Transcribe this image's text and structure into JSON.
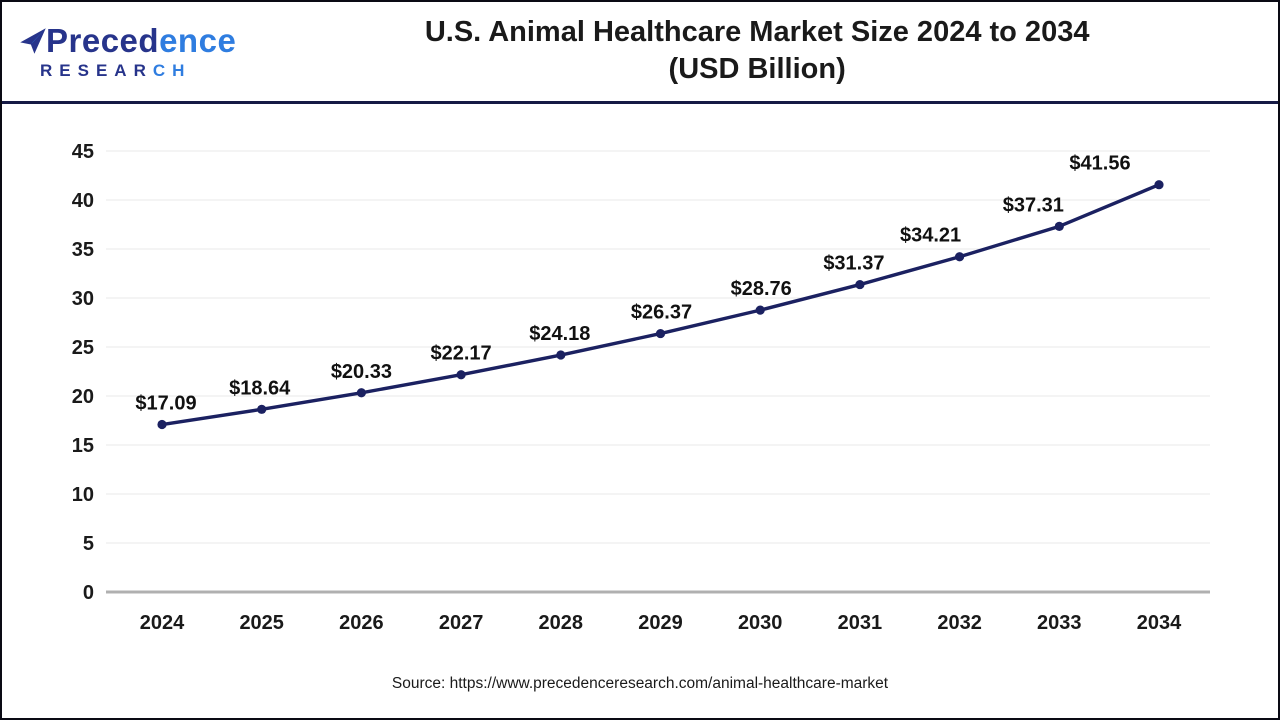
{
  "header": {
    "logo": {
      "icon": "paper-plane-icon",
      "name_part1": "Preced",
      "name_part2": "ence",
      "sub_part1": "RESEAR",
      "sub_part2": "CH"
    },
    "title_line1": "U.S. Animal Healthcare Market Size 2024 to 2034",
    "title_line2": "(USD Billion)"
  },
  "footer": {
    "source": "Source: https://www.precedenceresearch.com/animal-healthcare-market"
  },
  "colors": {
    "line": "#1b2161",
    "marker": "#1b2161",
    "grid": "#ededed",
    "axis_zero": "#b0b0b0",
    "text": "#1a1a1a",
    "header_rule": "#161a45",
    "brand_navy": "#27348b",
    "brand_blue": "#2f7de0"
  },
  "chart_data": {
    "type": "line",
    "title": "U.S. Animal Healthcare Market Size 2024 to 2034 (USD Billion)",
    "categories": [
      "2024",
      "2025",
      "2026",
      "2027",
      "2028",
      "2029",
      "2030",
      "2031",
      "2032",
      "2033",
      "2034"
    ],
    "values": [
      17.09,
      18.64,
      20.33,
      22.17,
      24.18,
      26.37,
      28.76,
      31.37,
      34.21,
      37.31,
      41.56
    ],
    "value_labels": [
      "$17.09",
      "$18.64",
      "$20.33",
      "$22.17",
      "$24.18",
      "$26.37",
      "$28.76",
      "$31.37",
      "$34.21",
      "$37.31",
      "$41.56"
    ],
    "xlabel": "",
    "ylabel": "",
    "ylim": [
      0,
      45
    ],
    "yticks": [
      0,
      5,
      10,
      15,
      20,
      25,
      30,
      35,
      40,
      45
    ],
    "grid": true,
    "legend": "none"
  }
}
